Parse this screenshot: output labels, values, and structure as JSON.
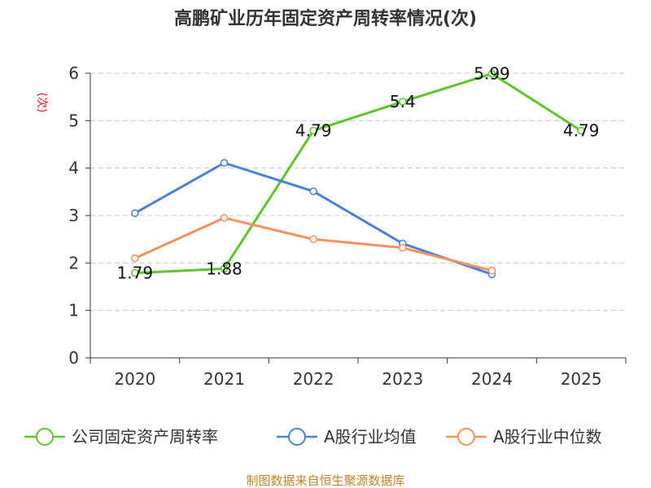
{
  "chart_data": {
    "type": "line",
    "title": "高鹏矿业历年固定资产周转率情况(次)",
    "ylabel": "(次)",
    "xlabel": "",
    "categories": [
      "2020",
      "2021",
      "2022",
      "2023",
      "2024",
      "2025"
    ],
    "ylim": [
      0,
      6
    ],
    "yticks": [
      "0",
      "1",
      "2",
      "3",
      "4",
      "5",
      "6"
    ],
    "grid": true,
    "legend_position": "bottom",
    "series": [
      {
        "name": "公司固定资产周转率",
        "color": "#5cc62a",
        "values": [
          1.79,
          1.88,
          4.79,
          5.4,
          5.99,
          4.79
        ],
        "labels": [
          "1.79",
          "1.88",
          "4.79",
          "5.4",
          "5.99",
          "4.79"
        ]
      },
      {
        "name": "A股行业均值",
        "color": "#4a7fdc",
        "values": [
          3.05,
          4.11,
          3.51,
          2.41,
          1.76,
          null
        ]
      },
      {
        "name": "A股行业中位数",
        "color": "#f7925a",
        "values": [
          2.1,
          2.95,
          2.5,
          2.32,
          1.84,
          null
        ]
      }
    ]
  },
  "source": "制图数据来自恒生聚源数据库"
}
